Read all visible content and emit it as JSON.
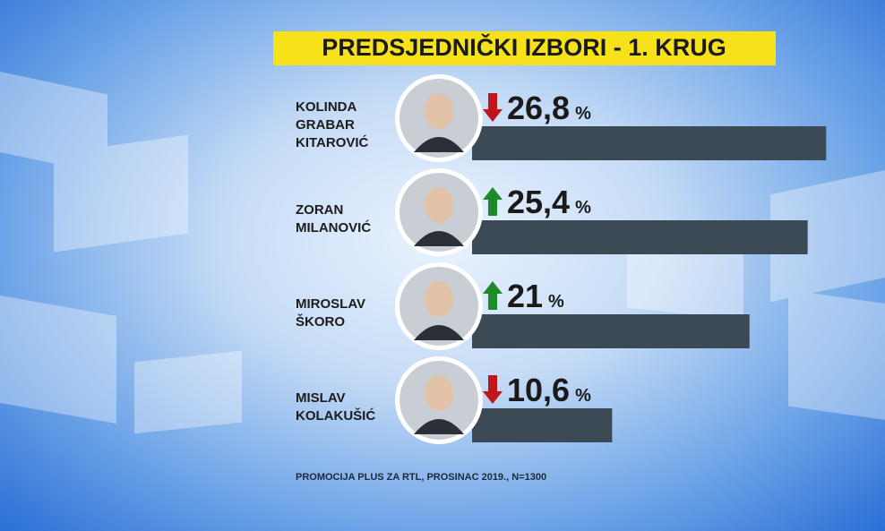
{
  "chart_data": {
    "type": "bar",
    "orientation": "horizontal",
    "title": "PREDSJEDNIČKI IZBORI - 1. KRUG",
    "categories": [
      "KOLINDA GRABAR KITAROVIĆ",
      "ZORAN MILANOVIĆ",
      "MIROSLAV ŠKORO",
      "MISLAV KOLAKUŠIĆ"
    ],
    "values": [
      26.8,
      25.4,
      21,
      10.6
    ],
    "value_labels": [
      "26,8",
      "25,4",
      "21",
      "10,6"
    ],
    "unit": "%",
    "trend": [
      "down",
      "up",
      "up",
      "down"
    ],
    "trend_colors": {
      "up": "#1f8a2a",
      "down": "#c0151b"
    },
    "color": "#3c4a55",
    "source": "PROMOCIJA PLUS ZA RTL, PROSINAC 2019., N=1300"
  }
}
